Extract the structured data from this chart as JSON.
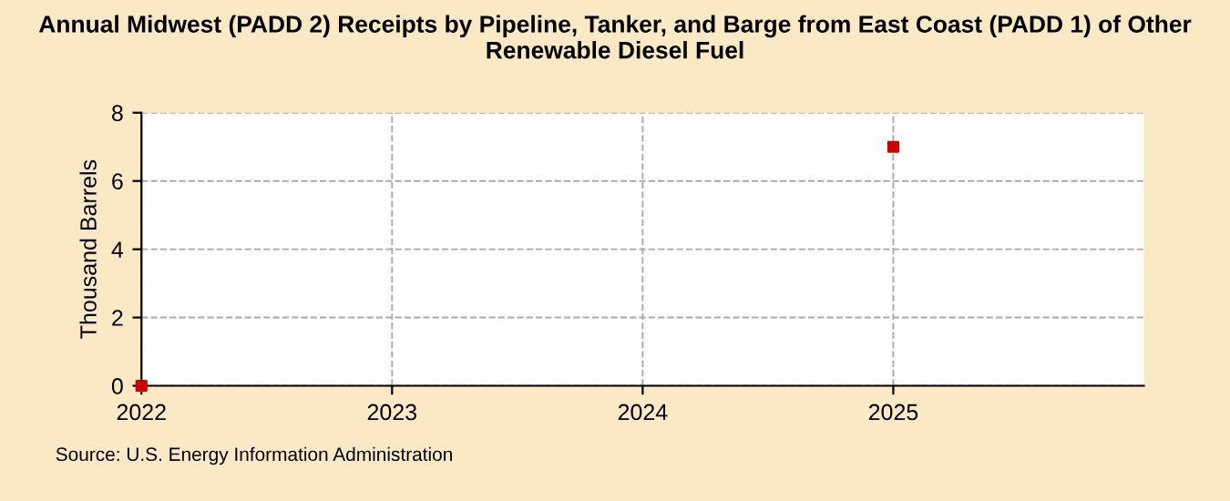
{
  "chart_data": {
    "type": "scatter",
    "title": "Annual Midwest (PADD 2) Receipts by Pipeline, Tanker, and Barge from East Coast (PADD 1) of Other Renewable Diesel Fuel",
    "ylabel": "Thousand Barrels",
    "x": [
      2022,
      2025
    ],
    "series": [
      {
        "color": "#cc0000",
        "values": [
          0,
          7
        ]
      }
    ],
    "xlim": [
      2022,
      2026
    ],
    "xticks": [
      2022,
      2023,
      2024,
      2025
    ],
    "ylim": [
      0,
      8
    ],
    "yticks": [
      0,
      2,
      4,
      6,
      8
    ],
    "grid": true,
    "marker": "square",
    "annotations": [
      "Source: U.S. Energy Information Administration"
    ]
  }
}
